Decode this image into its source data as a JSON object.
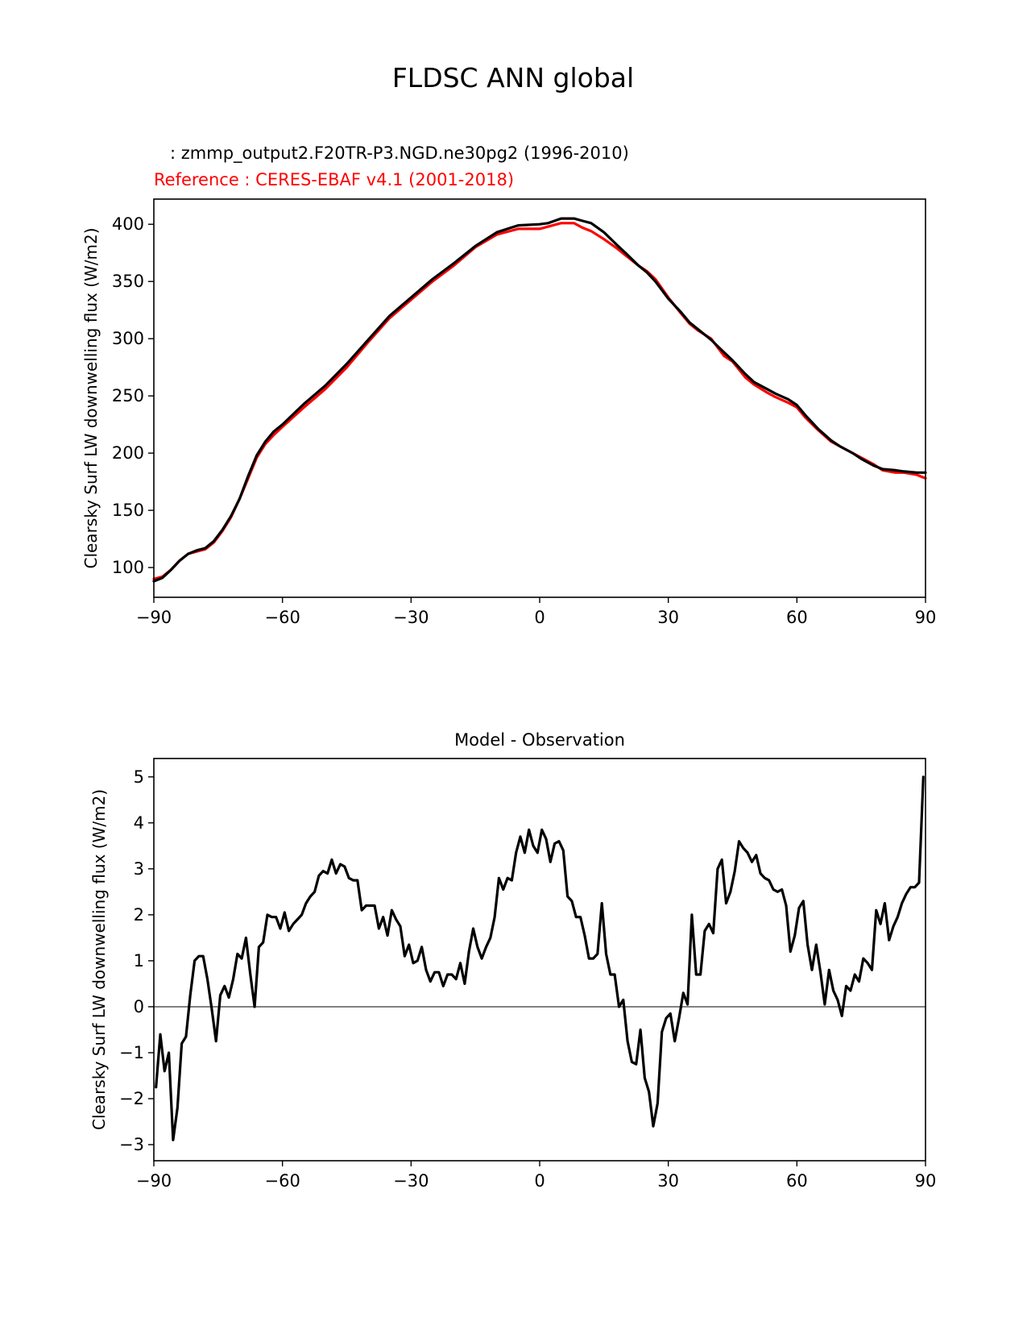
{
  "figure": {
    "title": "FLDSC ANN global"
  },
  "chart_data": [
    {
      "type": "line",
      "subtitle": "   : zmmp_output2.F20TR-P3.NGD.ne30pg2 (1996-2010)",
      "reference_label": "Reference : CERES-EBAF v4.1 (2001-2018)",
      "xlabel": "",
      "ylabel": "Clearsky Surf LW downwelling flux (W/m2)",
      "xlim": [
        -90,
        90
      ],
      "ylim": [
        74,
        422
      ],
      "xticks": [
        -90,
        -60,
        -30,
        0,
        30,
        60,
        90
      ],
      "xtick_labels": [
        "−90",
        "−60",
        "−30",
        "0",
        "30",
        "60",
        "90"
      ],
      "yticks": [
        100,
        150,
        200,
        250,
        300,
        350,
        400
      ],
      "ytick_labels": [
        "100",
        "150",
        "200",
        "250",
        "300",
        "350",
        "400"
      ],
      "grid": false,
      "series": [
        {
          "color": "#ff0000",
          "x": [
            -90,
            -88,
            -86,
            -84,
            -82,
            -80,
            -78,
            -76,
            -74,
            -72,
            -70,
            -68,
            -66,
            -64,
            -62,
            -60,
            -55,
            -50,
            -45,
            -40,
            -35,
            -30,
            -25,
            -20,
            -15,
            -10,
            -5,
            0,
            2,
            5,
            8,
            10,
            12,
            15,
            18,
            20,
            23,
            25,
            27,
            30,
            33,
            35,
            37,
            40,
            43,
            45,
            48,
            50,
            53,
            55,
            58,
            60,
            62,
            65,
            68,
            70,
            73,
            75,
            78,
            80,
            83,
            85,
            88,
            90
          ],
          "y": [
            90,
            92,
            98,
            106,
            112,
            114,
            116,
            122,
            132,
            144,
            160,
            178,
            196,
            208,
            216,
            223,
            240,
            256,
            275,
            297,
            318,
            334,
            350,
            364,
            380,
            391,
            396,
            396,
            398,
            401,
            401,
            397,
            394,
            387,
            379,
            373,
            364,
            359,
            352,
            336,
            322,
            313,
            307,
            300,
            285,
            280,
            266,
            260,
            253,
            249,
            244,
            240,
            231,
            220,
            210,
            206,
            200,
            196,
            190,
            185,
            183,
            183,
            181,
            178
          ]
        },
        {
          "color": "#000000",
          "x": [
            -90,
            -88,
            -86,
            -84,
            -82,
            -80,
            -78,
            -76,
            -74,
            -72,
            -70,
            -68,
            -66,
            -64,
            -62,
            -60,
            -55,
            -50,
            -45,
            -40,
            -35,
            -30,
            -25,
            -20,
            -15,
            -10,
            -5,
            0,
            2,
            5,
            8,
            10,
            12,
            15,
            18,
            20,
            23,
            25,
            27,
            30,
            33,
            35,
            37,
            40,
            43,
            45,
            48,
            50,
            53,
            55,
            58,
            60,
            62,
            65,
            68,
            70,
            73,
            75,
            78,
            80,
            83,
            85,
            88,
            90
          ],
          "y": [
            88,
            91,
            98,
            106,
            112,
            115,
            117,
            123,
            133,
            145,
            160,
            180,
            198,
            210,
            219,
            225,
            243,
            259,
            278,
            299,
            320,
            336,
            352,
            366,
            381,
            393,
            399,
            400,
            401,
            405,
            405,
            403,
            401,
            393,
            382,
            375,
            364,
            358,
            350,
            335,
            323,
            314,
            308,
            299,
            288,
            281,
            269,
            262,
            256,
            252,
            247,
            242,
            233,
            221,
            211,
            206,
            200,
            195,
            189,
            186,
            185,
            184,
            183,
            183
          ]
        }
      ]
    },
    {
      "type": "line",
      "title": "Model - Observation",
      "xlabel": "",
      "ylabel": "Clearsky Surf LW downwelling flux (W/m2)",
      "xlim": [
        -90,
        90
      ],
      "ylim": [
        -3.35,
        5.4
      ],
      "xticks": [
        -90,
        -60,
        -30,
        0,
        30,
        60,
        90
      ],
      "xtick_labels": [
        "−90",
        "−60",
        "−30",
        "0",
        "30",
        "60",
        "90"
      ],
      "yticks": [
        -3,
        -2,
        -1,
        0,
        1,
        2,
        3,
        4,
        5
      ],
      "ytick_labels": [
        "−3",
        "−2",
        "−1",
        "0",
        "1",
        "2",
        "3",
        "4",
        "5"
      ],
      "zero_line_color": "#808080",
      "grid": false,
      "series": [
        {
          "color": "#000000",
          "x": [
            -89.5,
            -88.5,
            -87.5,
            -86.5,
            -85.5,
            -84.5,
            -83.5,
            -82.5,
            -81.5,
            -80.5,
            -79.5,
            -78.5,
            -77.5,
            -76.5,
            -75.5,
            -74.5,
            -73.5,
            -72.5,
            -71.5,
            -70.5,
            -69.5,
            -68.5,
            -67.5,
            -66.5,
            -65.5,
            -64.5,
            -63.5,
            -62.5,
            -61.5,
            -60.5,
            -59.5,
            -58.5,
            -57.5,
            -56.5,
            -55.5,
            -54.5,
            -53.5,
            -52.5,
            -51.5,
            -50.5,
            -49.5,
            -48.5,
            -47.5,
            -46.5,
            -45.5,
            -44.5,
            -43.5,
            -42.5,
            -41.5,
            -40.5,
            -39.5,
            -38.5,
            -37.5,
            -36.5,
            -35.5,
            -34.5,
            -33.5,
            -32.5,
            -31.5,
            -30.5,
            -29.5,
            -28.5,
            -27.5,
            -26.5,
            -25.5,
            -24.5,
            -23.5,
            -22.5,
            -21.5,
            -20.5,
            -19.5,
            -18.5,
            -17.5,
            -16.5,
            -15.5,
            -14.5,
            -13.5,
            -12.5,
            -11.5,
            -10.5,
            -9.5,
            -8.5,
            -7.5,
            -6.5,
            -5.5,
            -4.5,
            -3.5,
            -2.5,
            -1.5,
            -0.5,
            0.5,
            1.5,
            2.5,
            3.5,
            4.5,
            5.5,
            6.5,
            7.5,
            8.5,
            9.5,
            10.5,
            11.5,
            12.5,
            13.5,
            14.5,
            15.5,
            16.5,
            17.5,
            18.5,
            19.5,
            20.5,
            21.5,
            22.5,
            23.5,
            24.5,
            25.5,
            26.5,
            27.5,
            28.5,
            29.5,
            30.5,
            31.5,
            32.5,
            33.5,
            34.5,
            35.5,
            36.5,
            37.5,
            38.5,
            39.5,
            40.5,
            41.5,
            42.5,
            43.5,
            44.5,
            45.5,
            46.5,
            47.5,
            48.5,
            49.5,
            50.5,
            51.5,
            52.5,
            53.5,
            54.5,
            55.5,
            56.5,
            57.5,
            58.5,
            59.5,
            60.5,
            61.5,
            62.5,
            63.5,
            64.5,
            65.5,
            66.5,
            67.5,
            68.5,
            69.5,
            70.5,
            71.5,
            72.5,
            73.5,
            74.5,
            75.5,
            76.5,
            77.5,
            78.5,
            79.5,
            80.5,
            81.5,
            82.5,
            83.5,
            84.5,
            85.5,
            86.5,
            87.5,
            88.5,
            89.5
          ],
          "y": [
            -1.75,
            -0.6,
            -1.4,
            -1.0,
            -2.9,
            -2.2,
            -0.8,
            -0.65,
            0.25,
            1.0,
            1.1,
            1.1,
            0.6,
            -0.05,
            -0.75,
            0.25,
            0.45,
            0.2,
            0.6,
            1.15,
            1.05,
            1.5,
            0.7,
            0.0,
            1.3,
            1.4,
            2.0,
            1.95,
            1.95,
            1.7,
            2.05,
            1.65,
            1.8,
            1.9,
            2.0,
            2.25,
            2.4,
            2.5,
            2.85,
            2.95,
            2.9,
            3.2,
            2.9,
            3.1,
            3.05,
            2.8,
            2.75,
            2.75,
            2.1,
            2.2,
            2.2,
            2.2,
            1.7,
            1.95,
            1.55,
            2.1,
            1.9,
            1.75,
            1.1,
            1.35,
            0.95,
            1.0,
            1.3,
            0.8,
            0.55,
            0.75,
            0.75,
            0.45,
            0.7,
            0.7,
            0.6,
            0.95,
            0.5,
            1.2,
            1.7,
            1.3,
            1.05,
            1.3,
            1.5,
            1.95,
            2.8,
            2.55,
            2.8,
            2.75,
            3.35,
            3.7,
            3.35,
            3.85,
            3.5,
            3.35,
            3.85,
            3.65,
            3.15,
            3.55,
            3.6,
            3.4,
            2.4,
            2.3,
            1.95,
            1.95,
            1.55,
            1.05,
            1.05,
            1.15,
            2.25,
            1.15,
            0.7,
            0.7,
            0.0,
            0.15,
            -0.75,
            -1.2,
            -1.25,
            -0.5,
            -1.55,
            -1.85,
            -2.6,
            -2.1,
            -0.55,
            -0.25,
            -0.15,
            -0.75,
            -0.25,
            0.3,
            0.05,
            2.0,
            0.7,
            0.7,
            1.65,
            1.8,
            1.6,
            3.0,
            3.2,
            2.25,
            2.5,
            2.95,
            3.6,
            3.45,
            3.35,
            3.15,
            3.3,
            2.9,
            2.8,
            2.75,
            2.55,
            2.5,
            2.55,
            2.2,
            1.2,
            1.55,
            2.15,
            2.3,
            1.35,
            0.8,
            1.35,
            0.75,
            0.05,
            0.8,
            0.35,
            0.15,
            -0.2,
            0.45,
            0.35,
            0.7,
            0.55,
            1.05,
            0.95,
            0.8,
            2.1,
            1.8,
            2.25,
            1.45,
            1.75,
            1.95,
            2.25,
            2.45,
            2.6,
            2.6,
            2.7,
            5.0
          ]
        }
      ]
    }
  ]
}
